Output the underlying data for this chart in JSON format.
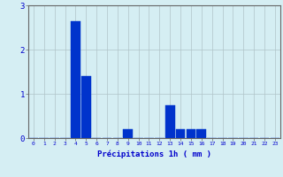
{
  "categories": [
    0,
    1,
    2,
    3,
    4,
    5,
    6,
    7,
    8,
    9,
    10,
    11,
    12,
    13,
    14,
    15,
    16,
    17,
    18,
    19,
    20,
    21,
    22,
    23
  ],
  "values": [
    0,
    0,
    0,
    0,
    2.65,
    1.4,
    0,
    0,
    0,
    0.2,
    0,
    0,
    0,
    0.75,
    0.2,
    0.2,
    0.2,
    0,
    0,
    0,
    0,
    0,
    0,
    0
  ],
  "bar_color": "#0033cc",
  "bar_edge_color": "#0033cc",
  "background_color": "#d5eef3",
  "grid_color": "#b0c4c8",
  "xlabel": "Précipitations 1h ( mm )",
  "xlabel_color": "#0000cc",
  "tick_color": "#0000cc",
  "axis_color": "#666666",
  "ylim": [
    0,
    3
  ],
  "yticks": [
    0,
    1,
    2,
    3
  ],
  "figsize": [
    3.2,
    2.0
  ],
  "dpi": 100
}
